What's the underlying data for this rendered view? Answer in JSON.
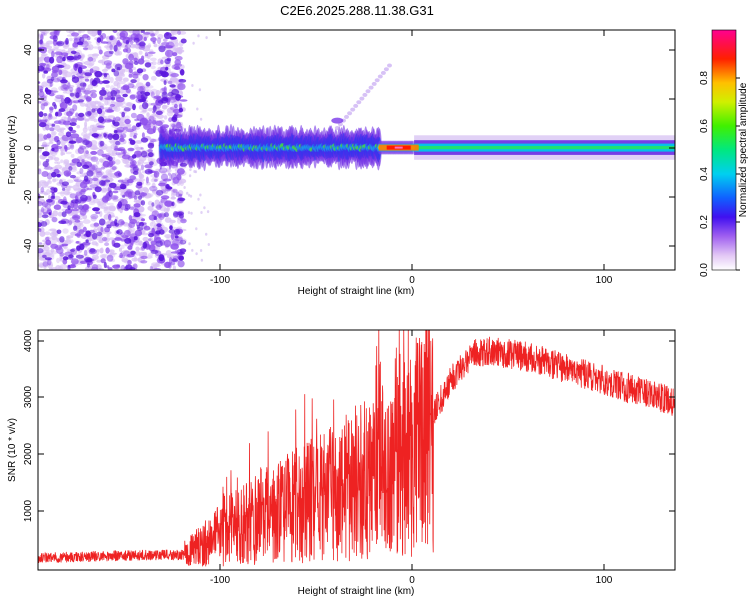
{
  "title": "C2E6.2025.288.11.38.G31",
  "chart_data": [
    {
      "type": "heatmap",
      "name": "spectrogram",
      "xlabel": "Height of straight line (km)",
      "ylabel": "Frequency (Hz)",
      "xlim": [
        -196,
        136
      ],
      "ylim": [
        -50,
        48
      ],
      "x_ticks": [
        "-100",
        "0",
        "100"
      ],
      "y_ticks": [
        "-40",
        "-20",
        "0",
        "20",
        "40"
      ],
      "features": {
        "noise_region_x": [
          -196,
          -120
        ],
        "band_center_hz": 0,
        "band_halfwidth_hz": [
          6,
          3
        ],
        "peak_x": -8
      },
      "colorbar": {
        "label": "Normalized spectral amplitude",
        "range": [
          0,
          1
        ],
        "ticks": [
          "0.0",
          "0.2",
          "0.4",
          "0.6",
          "0.8"
        ]
      }
    },
    {
      "type": "line",
      "name": "snr",
      "xlabel": "Height of straight line (km)",
      "ylabel": "SNR (10 * v/v)",
      "xlim": [
        -196,
        136
      ],
      "ylim": [
        0,
        4000
      ],
      "x_ticks": [
        "-100",
        "0",
        "100"
      ],
      "y_ticks": [
        "1000",
        "2000",
        "3000",
        "4000"
      ],
      "color": "#ee2222",
      "envelope": {
        "x": [
          -196,
          -140,
          -120,
          -100,
          -80,
          -60,
          -40,
          -20,
          -10,
          0,
          10,
          20,
          30,
          40,
          60,
          80,
          100,
          120,
          136
        ],
        "y": [
          200,
          250,
          250,
          600,
          900,
          1100,
          1300,
          1600,
          1700,
          2000,
          2600,
          3200,
          3600,
          3650,
          3550,
          3350,
          3150,
          2950,
          2800
        ]
      }
    }
  ]
}
